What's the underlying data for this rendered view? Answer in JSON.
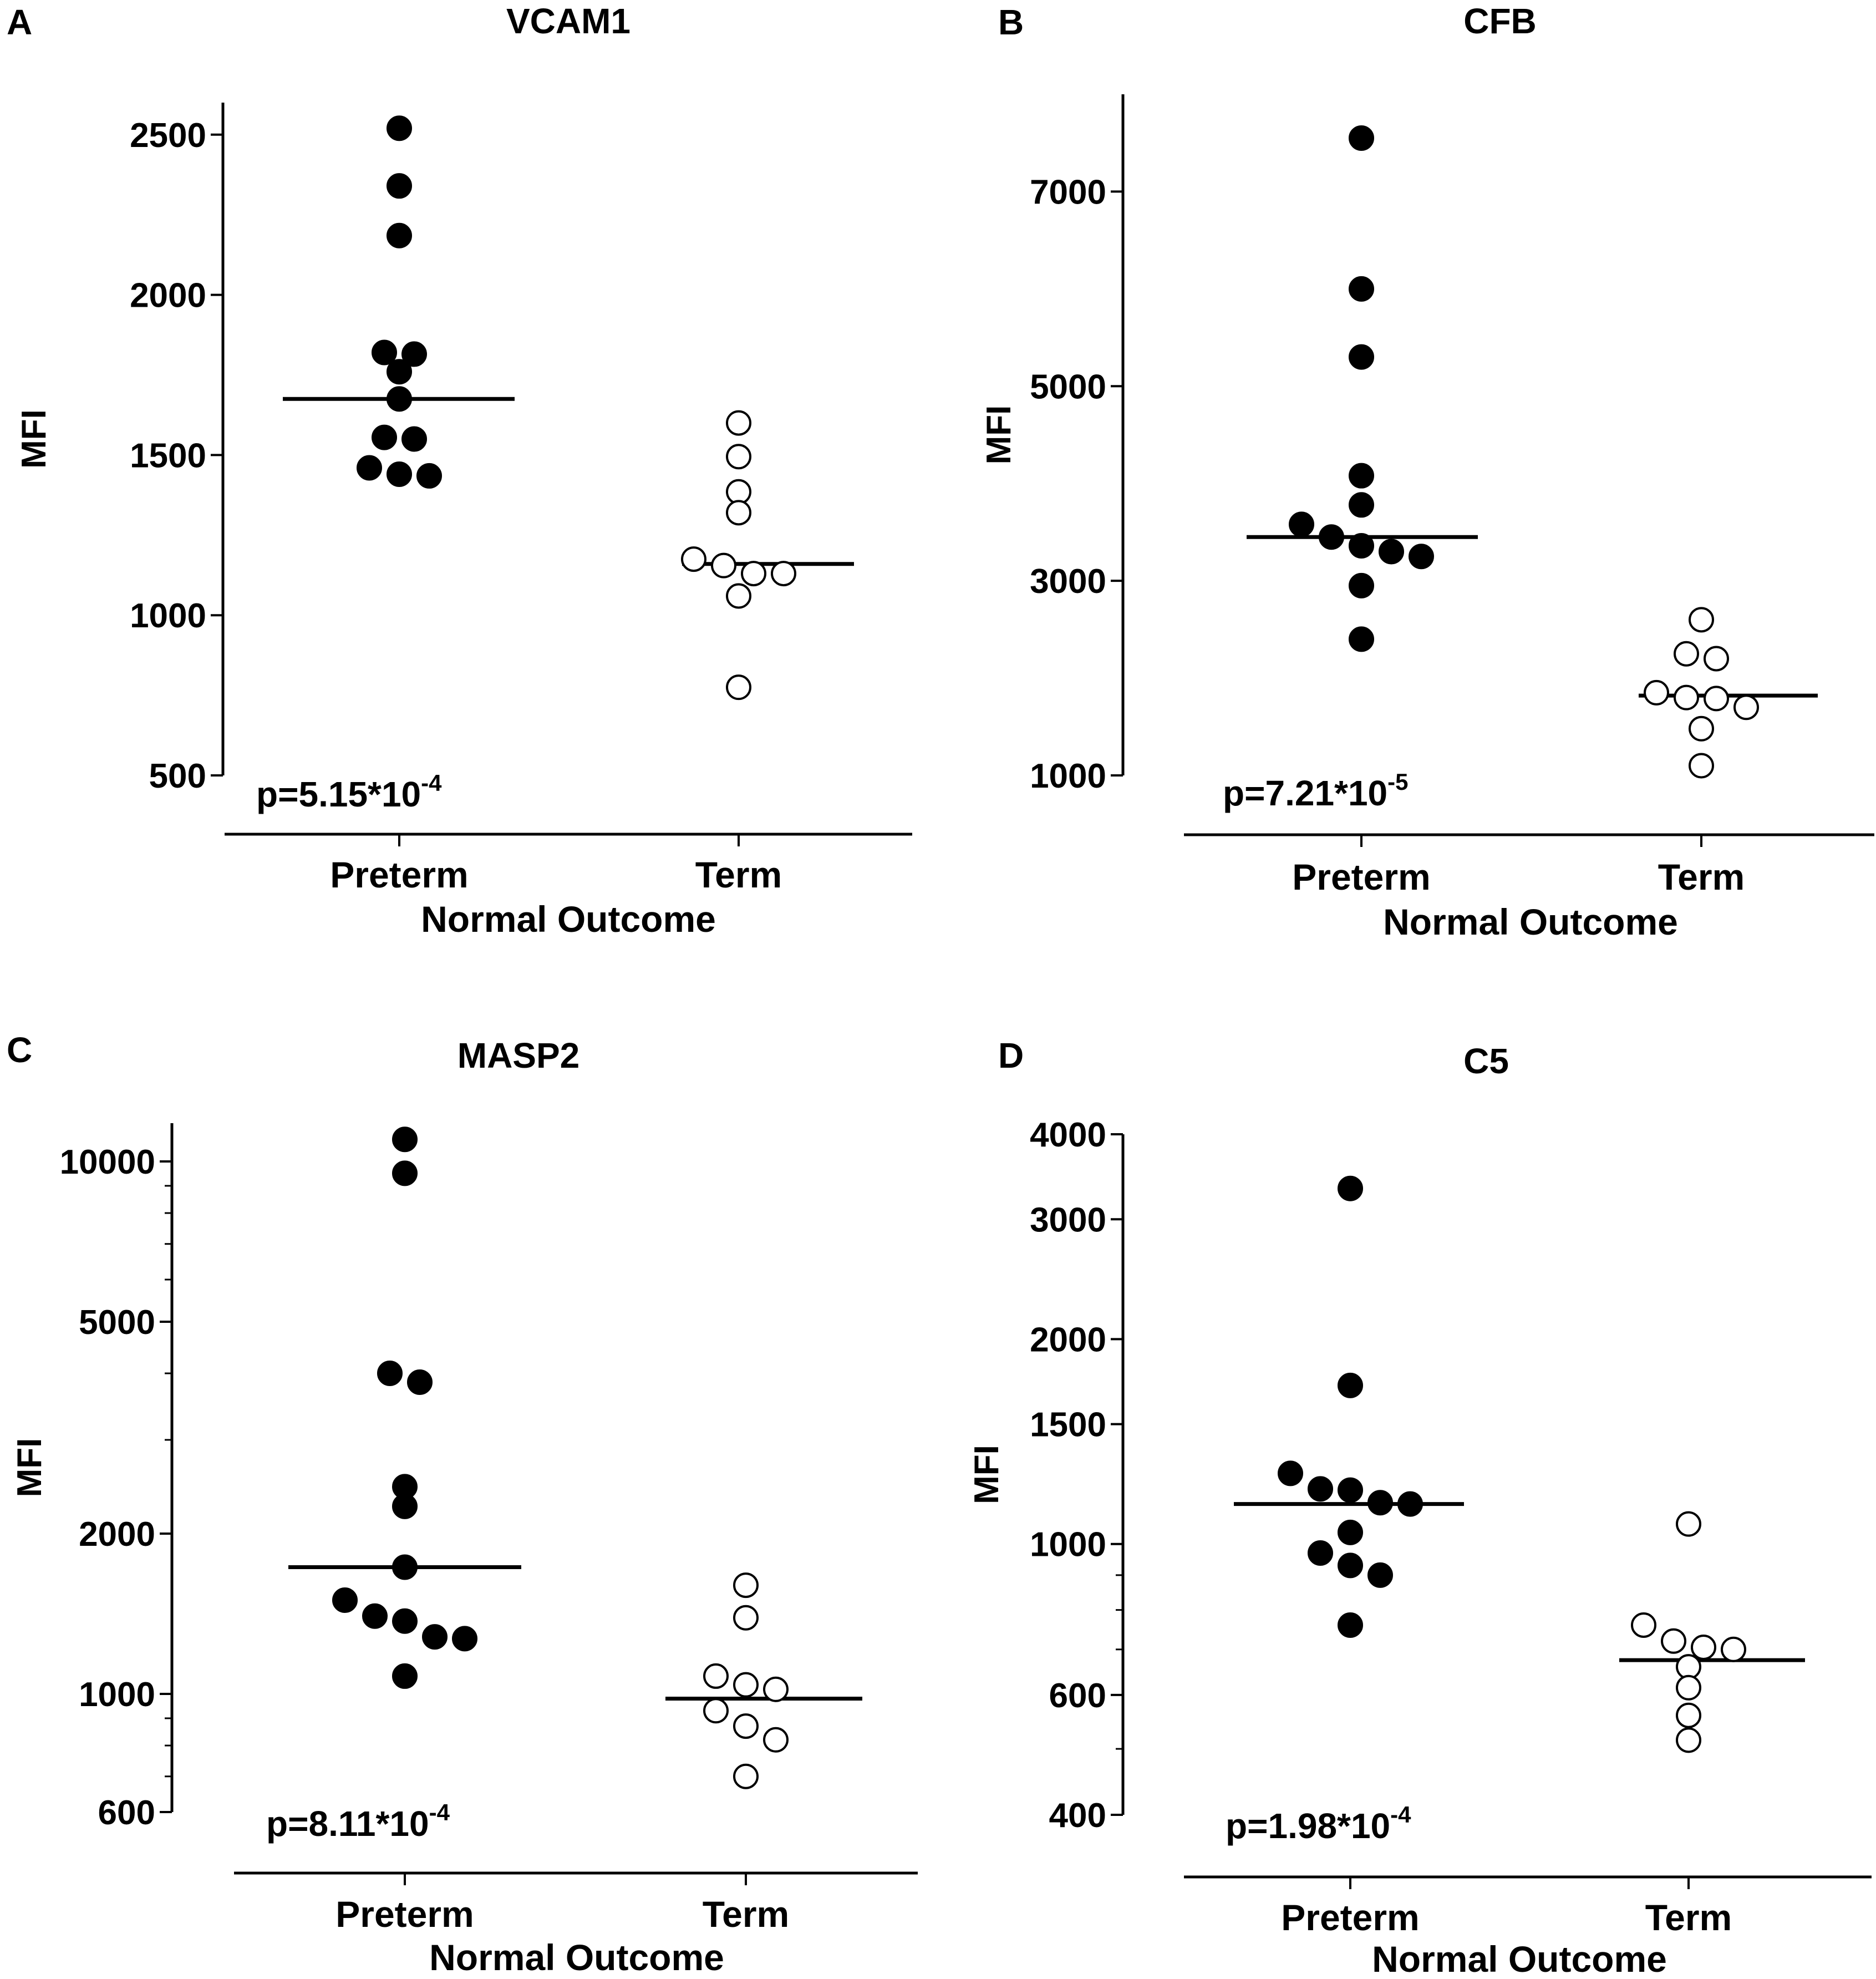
{
  "chart_data": [
    {
      "type": "scatter",
      "panel_letter": "A",
      "title": "VCAM1",
      "ylabel": "MFI",
      "xlabel": "Normal Outcome",
      "categories": [
        "Preterm",
        "Term"
      ],
      "y_scale": "linear",
      "ylim": [
        500,
        2600
      ],
      "yticks": [
        500,
        1000,
        1500,
        2000,
        2500
      ],
      "yticklabels": [
        "500",
        "1000",
        "1500",
        "2000",
        "2500"
      ],
      "minor_ticks": [],
      "p_value": {
        "base": "p=5.15*10",
        "exponent": "-4"
      },
      "series": [
        {
          "name": "Preterm",
          "style": "filled",
          "values": [
            2520,
            2340,
            2185,
            1820,
            1815,
            1760,
            1675,
            1555,
            1550,
            1460,
            1440,
            1435
          ],
          "median": 1675
        },
        {
          "name": "Term",
          "style": "open",
          "values": [
            1600,
            1495,
            1385,
            1320,
            1175,
            1155,
            1130,
            1130,
            1060,
            775
          ],
          "median": 1160
        }
      ]
    },
    {
      "type": "scatter",
      "panel_letter": "B",
      "title": "CFB",
      "ylabel": "MFI",
      "xlabel": "Normal Outcome",
      "categories": [
        "Preterm",
        "Term"
      ],
      "y_scale": "linear",
      "ylim": [
        1000,
        8000
      ],
      "yticks": [
        1000,
        3000,
        5000,
        7000
      ],
      "yticklabels": [
        "1000",
        "3000",
        "5000",
        "7000"
      ],
      "minor_ticks": [],
      "p_value": {
        "base": "p=7.21*10",
        "exponent": "-5"
      },
      "series": [
        {
          "name": "Preterm",
          "style": "filled",
          "values": [
            7550,
            6000,
            5300,
            4080,
            3780,
            3580,
            3450,
            3360,
            3300,
            3250,
            2950,
            2400
          ],
          "median": 3450
        },
        {
          "name": "Term",
          "style": "open",
          "values": [
            2600,
            2250,
            2200,
            1850,
            1800,
            1790,
            1700,
            1480,
            1100
          ],
          "median": 1820
        }
      ]
    },
    {
      "type": "scatter",
      "panel_letter": "C",
      "title": "MASP2",
      "ylabel": "MFI",
      "xlabel": "Normal Outcome",
      "categories": [
        "Preterm",
        "Term"
      ],
      "y_scale": "log",
      "ylim": [
        600,
        11800
      ],
      "yticks": [
        600,
        1000,
        2000,
        5000,
        10000
      ],
      "yticklabels": [
        "600",
        "1000",
        "2000",
        "5000",
        "10000"
      ],
      "minor_ticks": [
        700,
        800,
        900,
        3000,
        4000,
        6000,
        7000,
        8000,
        9000
      ],
      "p_value": {
        "base": "p=8.11*10",
        "exponent": "-4"
      },
      "series": [
        {
          "name": "Preterm",
          "style": "filled",
          "values": [
            11000,
            9500,
            4000,
            3850,
            2450,
            2250,
            1730,
            1500,
            1400,
            1370,
            1280,
            1270,
            1080
          ],
          "median": 1730
        },
        {
          "name": "Term",
          "style": "open",
          "values": [
            1600,
            1390,
            1080,
            1040,
            1020,
            930,
            870,
            820,
            700
          ],
          "median": 980
        }
      ]
    },
    {
      "type": "scatter",
      "panel_letter": "D",
      "title": "C5",
      "ylabel": "MFI",
      "xlabel": "Normal Outcome",
      "categories": [
        "Preterm",
        "Term"
      ],
      "y_scale": "log",
      "ylim": [
        400,
        4000
      ],
      "yticks": [
        400,
        600,
        1000,
        1500,
        2000,
        3000,
        4000
      ],
      "yticklabels": [
        "400",
        "600",
        "1000",
        "1500",
        "2000",
        "3000",
        "4000"
      ],
      "minor_ticks": [
        500,
        700,
        800,
        900
      ],
      "p_value": {
        "base": "p=1.98*10",
        "exponent": "-4"
      },
      "series": [
        {
          "name": "Preterm",
          "style": "filled",
          "values": [
            3330,
            1710,
            1270,
            1205,
            1200,
            1150,
            1145,
            1040,
            970,
            930,
            900,
            760
          ],
          "median": 1145
        },
        {
          "name": "Term",
          "style": "open",
          "values": [
            1070,
            760,
            720,
            705,
            700,
            660,
            615,
            560,
            515
          ],
          "median": 675
        }
      ]
    }
  ]
}
